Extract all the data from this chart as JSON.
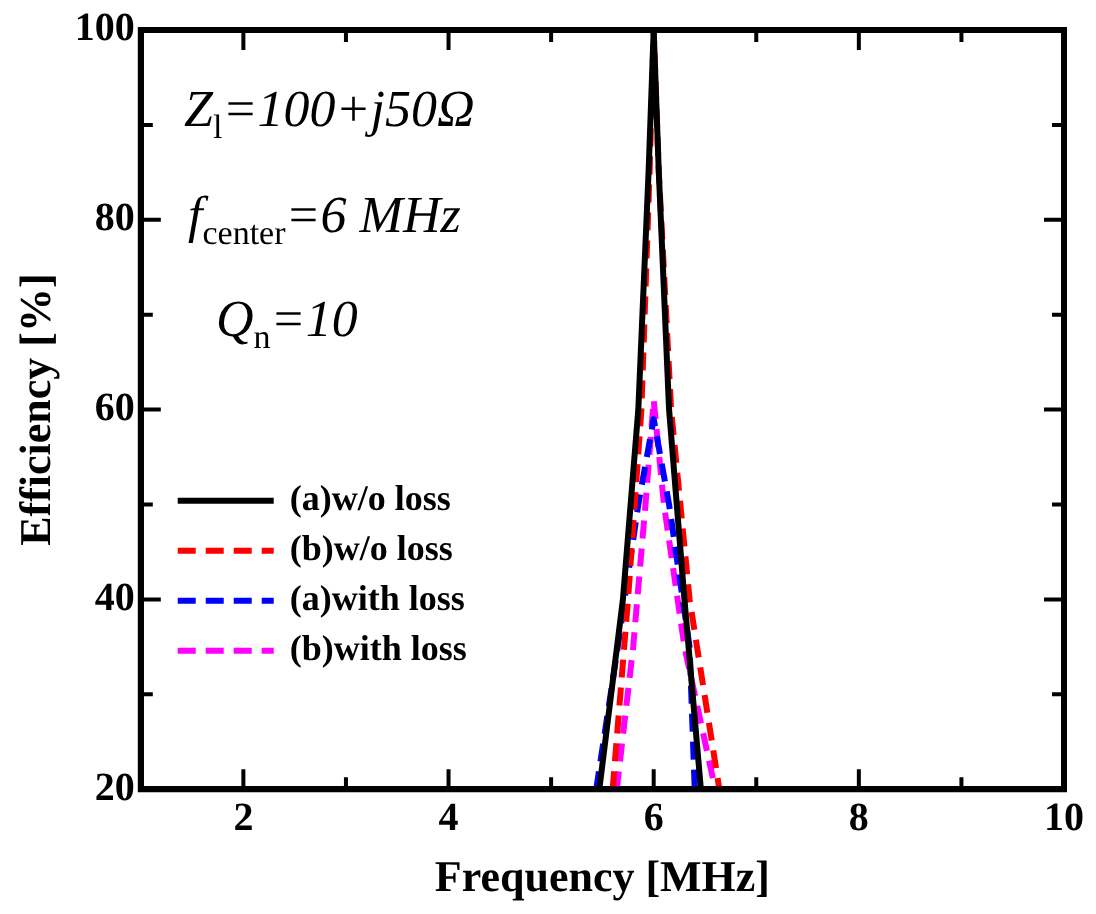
{
  "chart_data": {
    "type": "line",
    "xlabel": "Frequency [MHz]",
    "ylabel": "Efficiency [%]",
    "xlim": [
      1,
      10
    ],
    "xticks": [
      2,
      {
        "value": 3,
        "label": null
      },
      4,
      {
        "value": 5,
        "label": null
      },
      6,
      {
        "value": 7,
        "label": null
      },
      8,
      {
        "value": 9,
        "label": null
      },
      10
    ],
    "ylim": [
      20,
      100
    ],
    "yticks": [
      20,
      {
        "value": 30,
        "label": null
      },
      40,
      {
        "value": 50,
        "label": null
      },
      60,
      {
        "value": 70,
        "label": null
      },
      80,
      {
        "value": 90,
        "label": null
      },
      100
    ],
    "legend": "left",
    "marker": "none",
    "annotations": [
      "Z$_{l}$=100+j50Ω",
      "f$_{center}$=6 MHz",
      "Q$_{n}$=10"
    ],
    "series": [
      {
        "name": "(a)w/o loss",
        "color": "#000000",
        "line_style": "solid",
        "x": [
          5.47,
          5.7,
          5.85,
          5.95,
          6,
          6.05,
          6.15,
          6.3,
          6.46
        ],
        "values": [
          20,
          40,
          60,
          85,
          100,
          85,
          60,
          40,
          20
        ]
      },
      {
        "name": "(b)w/o loss",
        "color": "#ff0000",
        "line_style": "dashed",
        "x": [
          5.6,
          5.75,
          5.88,
          5.96,
          6,
          6.05,
          6.17,
          6.35,
          6.64
        ],
        "values": [
          20,
          40,
          60,
          85,
          100,
          85,
          60,
          40,
          20
        ]
      },
      {
        "name": "(a)with loss",
        "color": "#0000ff",
        "line_style": "dashed",
        "x": [
          5.44,
          5.65,
          5.85,
          6,
          6.15,
          6.35,
          6.4
        ],
        "values": [
          20,
          35,
          50,
          59,
          50,
          35,
          20
        ]
      },
      {
        "name": "(b)with loss",
        "color": "#ff00ff",
        "line_style": "dashed",
        "x": [
          5.64,
          5.8,
          5.92,
          6,
          6.1,
          6.3,
          6.6
        ],
        "values": [
          20,
          35,
          50,
          61,
          50,
          35,
          20
        ]
      }
    ]
  }
}
